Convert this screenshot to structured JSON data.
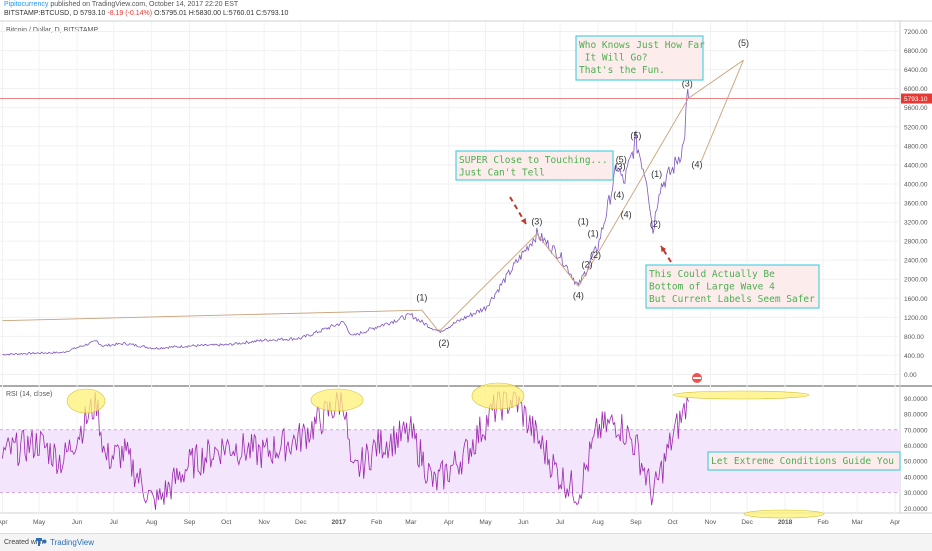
{
  "header": {
    "author": "Pipitocurrency",
    "published": "published on TradingView.com, October 14, 2017 22:20 EST",
    "symbol": "BITSTAMP:BTCUSD, D",
    "last_label": "5793.10",
    "change": "-8.19 (-0.14%)",
    "ohlc": "O:5795.01 H:5830.00 L:5760.01 C:5793.10"
  },
  "main_title": "Bitcoin / Dollar, D, BITSTAMP",
  "rsi_title": "RSI (14, close)",
  "current_price_label": "5793.10",
  "footer": {
    "created": "Created with",
    "brand": "TradingView"
  },
  "colors": {
    "price_line": "#7e57c2",
    "rsi_line": "#9c27b0",
    "rsi_band": "#f3e5fb",
    "trendline": "#c8a27a",
    "price_marker": "#e57373",
    "note_border": "#4dd0e1",
    "note_bg": "#fdecec",
    "note_text": "#4caf50",
    "arrow": "#c0392b",
    "highlight": "#fff176"
  },
  "annotations": [
    {
      "text": "Who Knows Just How Far\n It Will Go?\nThat's the Fun."
    },
    {
      "text": "SUPER Close to Touching...\nJust Can't Tell"
    },
    {
      "text": "This Could Actually Be\nBottom of Large Wave 4\nBut Current Labels Seem Safer"
    },
    {
      "text": "Let Extreme Conditions Guide You"
    }
  ],
  "wave_labels": [
    "(1)",
    "(2)",
    "(3)",
    "(4)",
    "(1)",
    "(1)",
    "(2)",
    "(2)",
    "(3)",
    "(5)",
    "(4)",
    "(4)",
    "(5)",
    "(1)",
    "(2)",
    "(3)",
    "(4)",
    "(5)"
  ],
  "chart_data": [
    {
      "type": "line",
      "title": "Bitcoin / Dollar, D, BITSTAMP",
      "y_axis_ticks": [
        0,
        400,
        800,
        1200,
        1600,
        2000,
        2400,
        2800,
        3200,
        3600,
        4000,
        4400,
        4800,
        5200,
        5600,
        6000,
        6400,
        6800,
        7200
      ],
      "ylim": [
        -200,
        7400
      ],
      "x_tick_labels": [
        "Apr",
        "May",
        "Jun",
        "Jul",
        "Aug",
        "Sep",
        "Oct",
        "Nov",
        "Dec",
        "2017",
        "Feb",
        "Mar",
        "Apr",
        "May",
        "Jun",
        "Jul",
        "Aug",
        "Sep",
        "Oct",
        "Nov",
        "Dec",
        "2018",
        "Feb",
        "Mar",
        "Apr"
      ],
      "grid": true,
      "series": [
        {
          "x": [
            "2016-04-01",
            "2016-05-01",
            "2016-05-20",
            "2016-06-17",
            "2016-06-22",
            "2016-07-10",
            "2016-08-03",
            "2016-09-01",
            "2016-10-01",
            "2016-11-01",
            "2016-12-01",
            "2017-01-05",
            "2017-01-12",
            "2017-02-01",
            "2017-03-01",
            "2017-03-10",
            "2017-03-24",
            "2017-04-15",
            "2017-05-01",
            "2017-05-25",
            "2017-06-12",
            "2017-07-01",
            "2017-07-16",
            "2017-08-01",
            "2017-08-08",
            "2017-08-17",
            "2017-08-22",
            "2017-09-01",
            "2017-09-10",
            "2017-09-15",
            "2017-09-20",
            "2017-10-01",
            "2017-10-10",
            "2017-10-13",
            "2017-10-14"
          ],
          "values": [
            420,
            450,
            460,
            700,
            600,
            650,
            550,
            600,
            620,
            720,
            760,
            1100,
            800,
            1000,
            1250,
            1100,
            900,
            1200,
            1400,
            2300,
            2950,
            2500,
            1850,
            2700,
            3400,
            4400,
            4000,
            4900,
            4100,
            3000,
            3900,
            4300,
            4800,
            5800,
            5793
          ]
        }
      ]
    },
    {
      "type": "line",
      "title": "RSI (14, close)",
      "y_axis_ticks": [
        20,
        30,
        40,
        50,
        60,
        70,
        80,
        90
      ],
      "ylim": [
        17,
        96
      ],
      "bands": [
        30,
        70
      ],
      "series": [
        {
          "x": [
            "2016-04-01",
            "2016-05-01",
            "2016-05-20",
            "2016-06-17",
            "2016-06-24",
            "2016-07-10",
            "2016-08-03",
            "2016-09-01",
            "2016-10-01",
            "2016-11-01",
            "2016-12-01",
            "2017-01-05",
            "2017-01-12",
            "2017-02-01",
            "2017-03-01",
            "2017-03-20",
            "2017-04-15",
            "2017-05-10",
            "2017-05-25",
            "2017-06-12",
            "2017-07-01",
            "2017-07-16",
            "2017-08-01",
            "2017-08-17",
            "2017-09-01",
            "2017-09-15",
            "2017-10-01",
            "2017-10-14"
          ],
          "values": [
            55,
            62,
            50,
            88,
            52,
            55,
            22,
            48,
            60,
            55,
            65,
            90,
            40,
            60,
            68,
            35,
            55,
            85,
            90,
            65,
            40,
            30,
            70,
            75,
            60,
            28,
            65,
            88
          ]
        }
      ]
    }
  ]
}
